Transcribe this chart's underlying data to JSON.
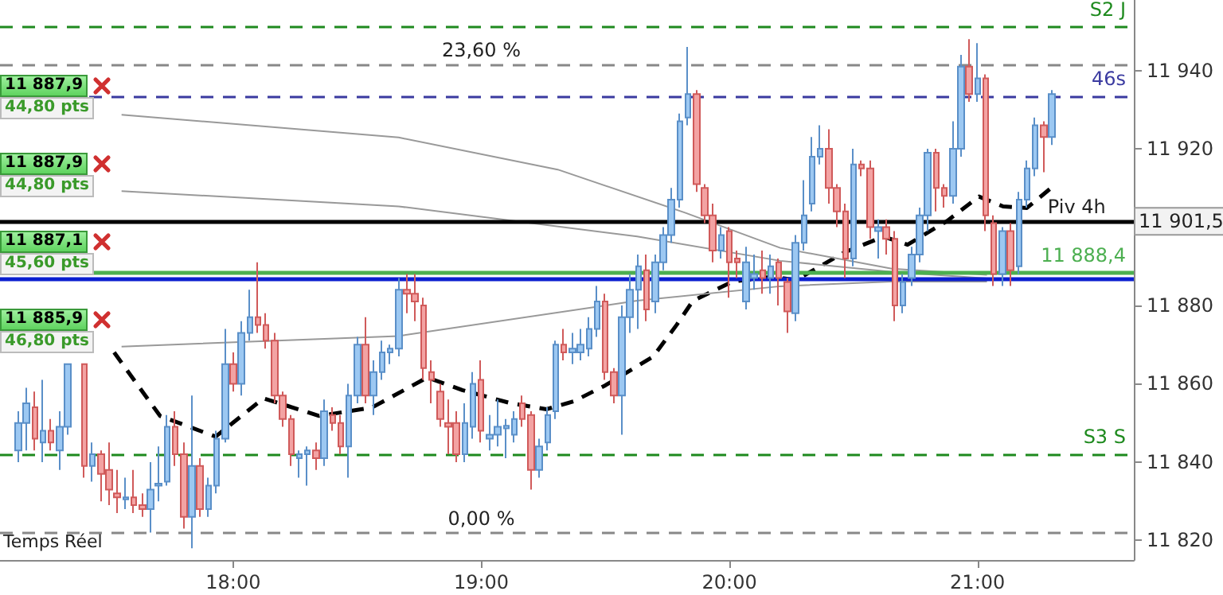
{
  "chart_data": {
    "type": "candlestick",
    "xlim": [
      17.06,
      21.63
    ],
    "ylim": [
      11815,
      11958
    ],
    "xticks": [
      {
        "value": 18,
        "label": "18:00"
      },
      {
        "value": 19,
        "label": "19:00"
      },
      {
        "value": 20,
        "label": "20:00"
      },
      {
        "value": 21,
        "label": "21:00"
      }
    ],
    "yticks": [
      {
        "value": 11820,
        "label": "11 820"
      },
      {
        "value": 11840,
        "label": "11 840"
      },
      {
        "value": 11860,
        "label": "11 860"
      },
      {
        "value": 11880,
        "label": "11 880"
      },
      {
        "value": 11900,
        "label": null
      },
      {
        "value": 11920,
        "label": "11 920"
      },
      {
        "value": 11940,
        "label": "11 940"
      }
    ],
    "x": [
      17.1333,
      17.1667,
      17.2,
      17.2333,
      17.2667,
      17.3,
      17.3333,
      17.4,
      17.4333,
      17.4667,
      17.5,
      17.5333,
      17.5667,
      17.6,
      17.6333,
      17.6667,
      17.7,
      17.7333,
      17.7667,
      17.8,
      17.8333,
      17.8667,
      17.9,
      17.9333,
      17.9667,
      18,
      18.0333,
      18.0667,
      18.1,
      18.1333,
      18.1667,
      18.2,
      18.2333,
      18.2667,
      18.3,
      18.3333,
      18.3667,
      18.4,
      18.4333,
      18.4667,
      18.5,
      18.5333,
      18.5667,
      18.6,
      18.6333,
      18.6667,
      18.7,
      18.7333,
      18.7667,
      18.8,
      18.8333,
      18.8667,
      18.9,
      18.9333,
      18.9667,
      19,
      19.0333,
      19.0667,
      19.1,
      19.1333,
      19.1667,
      19.2,
      19.2333,
      19.2667,
      19.3,
      19.3333,
      19.3667,
      19.4,
      19.4333,
      19.4667,
      19.5,
      19.5333,
      19.5667,
      19.6,
      19.6333,
      19.6667,
      19.7,
      19.7333,
      19.7667,
      19.8,
      19.8333,
      19.8667,
      19.9,
      19.9333,
      19.9667,
      20,
      20.0333,
      20.0667,
      20.1,
      20.1333,
      20.1667,
      20.2,
      20.2333,
      20.2667,
      20.3,
      20.3333,
      20.3667,
      20.4,
      20.4333,
      20.4667,
      20.5,
      20.5333,
      20.5667,
      20.6,
      20.6333,
      20.6667,
      20.7,
      20.7333,
      20.7667,
      20.8,
      20.8333,
      20.8667,
      20.9,
      20.9333,
      20.9667,
      21,
      21.0333,
      21.0667,
      21.1,
      21.1333,
      21.1667,
      21.2,
      21.2333,
      21.2667,
      21.3
    ],
    "ohlc": [
      [
        11843,
        11853,
        11840,
        11850
      ],
      [
        11850,
        11859,
        11843,
        11855
      ],
      [
        11854,
        11858,
        11843,
        11846
      ],
      [
        11845,
        11861,
        11840,
        11848
      ],
      [
        11848,
        11851,
        11843,
        11845
      ],
      [
        11843,
        11853,
        11838,
        11849
      ],
      [
        11849,
        11865,
        11847,
        11865
      ],
      [
        11865,
        11865,
        11836,
        11839
      ],
      [
        11839,
        11845,
        11835,
        11842
      ],
      [
        11842,
        11843,
        11830,
        11837
      ],
      [
        11838,
        11845,
        11829,
        11833
      ],
      [
        11832,
        11838,
        11827,
        11831
      ],
      [
        11830.5,
        11836,
        11828,
        11831
      ],
      [
        11831,
        11838,
        11827,
        11829
      ],
      [
        11829,
        11832,
        11826,
        11828
      ],
      [
        11828,
        11840,
        11822,
        11833
      ],
      [
        11834,
        11844,
        11830,
        11834.5
      ],
      [
        11835,
        11852,
        11834,
        11849
      ],
      [
        11849,
        11853,
        11839,
        11842
      ],
      [
        11842,
        11845,
        11823,
        11826
      ],
      [
        11826,
        11857,
        11818,
        11839
      ],
      [
        11839,
        11841,
        11826,
        11828
      ],
      [
        11828,
        11836,
        11826,
        11834
      ],
      [
        11834,
        11848,
        11832,
        11846
      ],
      [
        11846,
        11874,
        11845,
        11865
      ],
      [
        11865,
        11868,
        11858,
        11860
      ],
      [
        11860,
        11876,
        11857,
        11873
      ],
      [
        11873,
        11884,
        11871,
        11877
      ],
      [
        11877,
        11891,
        11873,
        11875
      ],
      [
        11875,
        11878,
        11869,
        11871
      ],
      [
        11871,
        11873,
        11855,
        11857
      ],
      [
        11857,
        11858,
        11849,
        11851
      ],
      [
        11851,
        11852,
        11839,
        11842
      ],
      [
        11841,
        11843,
        11836,
        11842
      ],
      [
        11842,
        11844,
        11834,
        11843
      ],
      [
        11843,
        11845,
        11838,
        11841
      ],
      [
        11841,
        11856,
        11839,
        11853
      ],
      [
        11852,
        11854,
        11848,
        11850
      ],
      [
        11850,
        11852,
        11842,
        11844
      ],
      [
        11844,
        11860,
        11836,
        11857
      ],
      [
        11857,
        11872,
        11855,
        11870
      ],
      [
        11870,
        11877,
        11855,
        11857
      ],
      [
        11857,
        11866,
        11852,
        11863
      ],
      [
        11863,
        11871,
        11861,
        11868
      ],
      [
        11868,
        11870,
        11865,
        11869
      ],
      [
        11869,
        11887,
        11867,
        11884
      ],
      [
        11884,
        11888,
        11878,
        11883
      ],
      [
        11883,
        11888,
        11876,
        11881
      ],
      [
        11880,
        11882,
        11861,
        11864
      ],
      [
        11863,
        11866,
        11855,
        11861
      ],
      [
        11858,
        11860,
        11849,
        11851
      ],
      [
        11850,
        11856,
        11842,
        11849
      ],
      [
        11850,
        11853,
        11840,
        11842
      ],
      [
        11842,
        11855,
        11840,
        11850
      ],
      [
        11849,
        11863,
        11846,
        11860
      ],
      [
        11861,
        11866,
        11845,
        11848
      ],
      [
        11846,
        11852,
        11843,
        11847
      ],
      [
        11847,
        11856,
        11844,
        11849
      ],
      [
        11848.6,
        11851,
        11841,
        11849.3
      ],
      [
        11847,
        11853,
        11845,
        11851
      ],
      [
        11855,
        11857,
        11849,
        11851
      ],
      [
        11852,
        11853,
        11833,
        11838
      ],
      [
        11838,
        11846,
        11836,
        11844
      ],
      [
        11845,
        11854,
        11843,
        11852
      ],
      [
        11853,
        11871,
        11851,
        11870
      ],
      [
        11870,
        11874,
        11866,
        11868
      ],
      [
        11868,
        11873,
        11865,
        11869
      ],
      [
        11868,
        11874,
        11866,
        11870
      ],
      [
        11869,
        11877,
        11867,
        11874
      ],
      [
        11874,
        11885,
        11872,
        11881
      ],
      [
        11881,
        11883,
        11861,
        11863
      ],
      [
        11863,
        11864,
        11855,
        11857
      ],
      [
        11857,
        11880,
        11847,
        11877
      ],
      [
        11877,
        11888,
        11873,
        11884
      ],
      [
        11884,
        11893,
        11874,
        11890
      ],
      [
        11889,
        11893,
        11876,
        11879
      ],
      [
        11881,
        11893,
        11878,
        11891
      ],
      [
        11891,
        11900,
        11889,
        11898
      ],
      [
        11898,
        11910,
        11896,
        11907
      ],
      [
        11907,
        11929,
        11905,
        11927
      ],
      [
        11928,
        11946,
        11926,
        11934
      ],
      [
        11934,
        11935,
        11909,
        11911
      ],
      [
        11910,
        11911,
        11901,
        11903
      ],
      [
        11903,
        11906,
        11891,
        11894
      ],
      [
        11894,
        11900,
        11892,
        11898
      ],
      [
        11899,
        11900,
        11882,
        11891
      ],
      [
        11892,
        11894,
        11887,
        11891
      ],
      [
        11881,
        11895,
        11879,
        11891
      ],
      [
        11887,
        11893,
        11884,
        11888
      ],
      [
        11889,
        11894,
        11883,
        11887
      ],
      [
        11887,
        11893,
        11883,
        11890
      ],
      [
        11891,
        11892,
        11880,
        11887
      ],
      [
        11886,
        11887,
        11873,
        11878.5
      ],
      [
        11878,
        11898,
        11876,
        11896
      ],
      [
        11896,
        11912,
        11894,
        11903
      ],
      [
        11906,
        11923,
        11904,
        11918
      ],
      [
        11918,
        11926,
        11916,
        11920
      ],
      [
        11920,
        11925,
        11906,
        11910
      ],
      [
        11910,
        11911,
        11900,
        11904
      ],
      [
        11904,
        11906,
        11887,
        11892
      ],
      [
        11892,
        11920,
        11890,
        11916
      ],
      [
        11916,
        11917,
        11913,
        11915
      ],
      [
        11915,
        11917,
        11897,
        11900
      ],
      [
        11899,
        11902,
        11892,
        11900
      ],
      [
        11900,
        11902,
        11893,
        11897
      ],
      [
        11897,
        11899,
        11876,
        11880
      ],
      [
        11880,
        11888,
        11878,
        11886
      ],
      [
        11887,
        11895,
        11885,
        11893
      ],
      [
        11893,
        11905,
        11891,
        11903
      ],
      [
        11903,
        11920,
        11899,
        11919
      ],
      [
        11919,
        11920,
        11904,
        11910
      ],
      [
        11910,
        11911,
        11905,
        11908
      ],
      [
        11908,
        11927,
        11906,
        11920
      ],
      [
        11920,
        11944,
        11918,
        11941
      ],
      [
        11941,
        11948,
        11932,
        11934
      ],
      [
        11934,
        11947,
        11932,
        11938
      ],
      [
        11938,
        11939,
        11899,
        11903
      ],
      [
        11901,
        11903,
        11885,
        11888
      ],
      [
        11888,
        11900,
        11885,
        11899
      ],
      [
        11899,
        11901,
        11885,
        11889
      ],
      [
        11890,
        11909,
        11888,
        11907
      ],
      [
        11907,
        11917,
        11905,
        11915
      ],
      [
        11915,
        11928,
        11913,
        11926
      ],
      [
        11926,
        11927,
        11914,
        11923
      ],
      [
        11923,
        11935,
        11921,
        11934
      ]
    ],
    "series": [
      {
        "type": "line",
        "color": "#000000",
        "line_style": "dashed",
        "x": [
          17.52,
          17.705,
          17.929,
          18.122,
          18.346,
          18.558,
          18.782,
          18.923,
          19.115,
          19.263,
          19.372,
          19.5,
          19.692,
          19.788,
          19.853,
          20.013,
          20.173,
          20.269,
          20.462,
          20.622,
          20.718,
          20.878,
          21.006,
          21.103,
          21.199,
          21.308
        ],
        "values": [
          11868,
          11851.8,
          11846.5,
          11856.3,
          11851.8,
          11853.9,
          11861.6,
          11858.4,
          11855.1,
          11853.5,
          11855.5,
          11859.6,
          11866.9,
          11875.1,
          11881.2,
          11886.1,
          11887.3,
          11886.5,
          11893.5,
          11897.6,
          11895.5,
          11901.6,
          11907.8,
          11905.3,
          11904.9,
          11910.6
        ]
      },
      {
        "type": "line",
        "color": "#999999",
        "line_style": "solid",
        "x": [
          17.55,
          18.667,
          19.308,
          19.821,
          20.205,
          20.654,
          21.038
        ],
        "values": [
          11928.7,
          11922.9,
          11914.7,
          11903.7,
          11894.7,
          11889.4,
          11887.8
        ]
      },
      {
        "type": "line",
        "color": "#999999",
        "line_style": "solid",
        "x": [
          17.55,
          18.667,
          19.628,
          20.205,
          20.654,
          21.038
        ],
        "values": [
          11909.2,
          11905.3,
          11897.6,
          11891.4,
          11888.6,
          11886.9
        ]
      },
      {
        "type": "line",
        "color": "#999999",
        "line_style": "solid",
        "x": [
          17.55,
          18.667,
          19.628,
          20.205,
          20.654,
          21.038
        ],
        "values": [
          11869.5,
          11872.2,
          11881.2,
          11884.9,
          11886.1,
          11886.1
        ]
      }
    ],
    "ref_lines": [
      {
        "axis": "y",
        "value": 11951,
        "label": "S2 J",
        "color": "#1e8a1e",
        "line_style": "dashed"
      },
      {
        "axis": "y",
        "value": 11941.6,
        "color": "#888888",
        "line_style": "dashed"
      },
      {
        "axis": "y",
        "value": 11933.5,
        "label": "46s",
        "color": "#3a3aa0",
        "line_style": "dashed"
      },
      {
        "axis": "y",
        "value": 11901.5,
        "color": "#000000",
        "line_style": "solid"
      },
      {
        "axis": "y",
        "value": 11888.4,
        "label": "11 888,4",
        "color": "#4caf50",
        "line_style": "solid"
      },
      {
        "axis": "y",
        "value": 11887,
        "color": "#0a1ed0",
        "line_style": "solid"
      },
      {
        "axis": "y",
        "value": 11842,
        "label": "S3 S",
        "color": "#1e8a1e",
        "line_style": "dashed"
      },
      {
        "axis": "y",
        "value": 11822,
        "color": "#888888",
        "line_style": "dashed"
      }
    ],
    "annotations": [
      "11 887,9",
      "44,80 pts",
      "11 887,9",
      "44,80 pts",
      "11 887,1",
      "45,60 pts",
      "11 885,9",
      "46,80 pts",
      "Temps Réel",
      {
        "text": "23,60 %",
        "x": 19.0,
        "y": 11941.6
      },
      {
        "text": "0,00 %",
        "x": 19.0,
        "y": 11822
      },
      {
        "text": "Piv 4h",
        "x": 21.4,
        "y": 11901.5
      },
      {
        "text": "11 901,5",
        "x": 21.63,
        "y": 11901.5
      }
    ],
    "grid": false,
    "marker": "none"
  }
}
